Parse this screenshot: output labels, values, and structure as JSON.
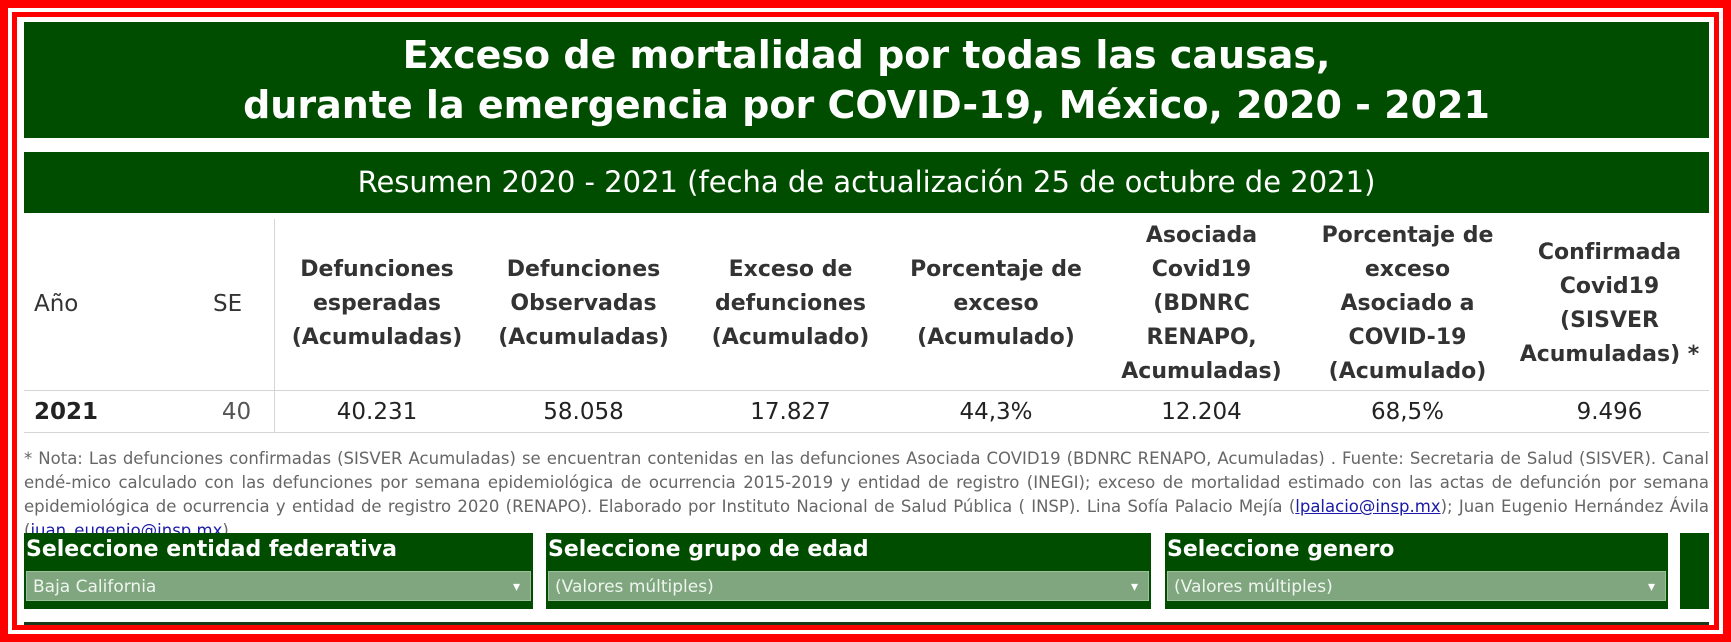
{
  "header": {
    "title_lines": [
      "Exceso de mortalidad por todas las causas,",
      "durante la emergencia por COVID-19, México, 2020 - 2021"
    ],
    "subtitle": "Resumen 2020 - 2021  (fecha de actualización 25 de octubre de 2021)"
  },
  "table": {
    "columns": [
      "Año",
      "SE",
      "Defunciones esperadas (Acumuladas)",
      "Defunciones Observadas (Acumuladas)",
      "Exceso de defunciones (Acumulado)",
      "Porcentaje de exceso (Acumulado)",
      "Asociada Covid19 (BDNRC RENAPO, Acumuladas)",
      "Porcentaje de exceso Asociado a COVID-19 (Acumulado)",
      "Confirmada Covid19 (SISVER Acumuladas) *"
    ],
    "rows": [
      [
        "2021",
        "40",
        "40.231",
        "58.058",
        "17.827",
        "44,3%",
        "12.204",
        "68,5%",
        "9.496"
      ]
    ]
  },
  "note": {
    "text_1": "* Nota: Las defunciones confirmadas (SISVER Acumuladas) se encuentran contenidas en las defunciones Asociada COVID19 (BDNRC RENAPO, Acumuladas) . Fuente: Secretaria de Salud (SISVER). Canal endé-mico calculado con las defunciones por semana epidemiológica de ocurrencia 2015-2019 y entidad de registro (INEGI); exceso de mortalidad estimado con las actas de defunción por semana epidemiológica de ocurrencia y entidad de registro 2020 (RENAPO). Elaborado por Instituto Nacional de Salud Pública ( INSP). Lina Sofía Palacio Mejía (",
    "link_1": "lpalacio@insp.mx",
    "text_2": "); Juan Eugenio Hernández Ávila (",
    "link_2": "juan_eugenio@insp.mx",
    "text_3": ")."
  },
  "filters": [
    {
      "label": "Seleccione entidad federativa",
      "value": "Baja California"
    },
    {
      "label": "Seleccione grupo de edad",
      "value": "(Valores múltiples)"
    },
    {
      "label": "Seleccione genero",
      "value": "(Valores múltiples)"
    }
  ]
}
